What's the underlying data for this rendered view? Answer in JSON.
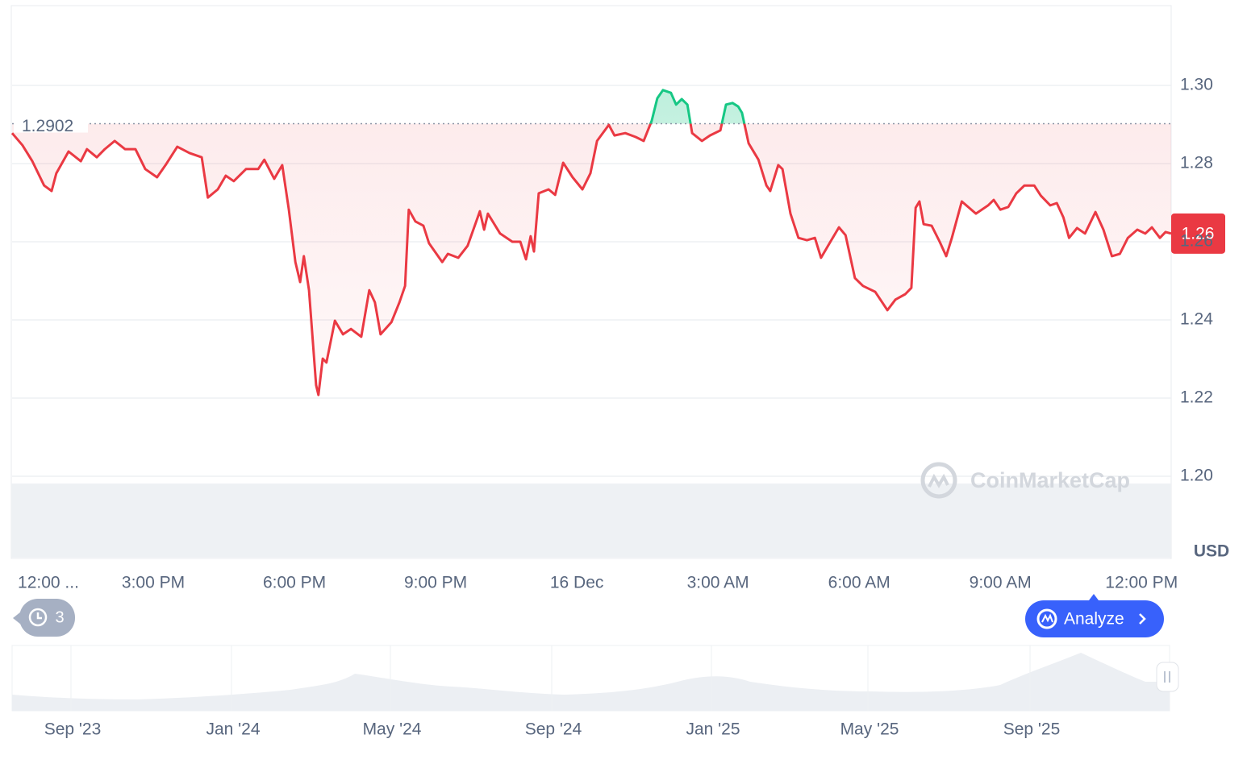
{
  "chart_data": {
    "type": "line",
    "baseline": 1.2902,
    "currency": "USD",
    "price_label": "1.26",
    "color_up": "#16c784",
    "color_down": "#ea3943",
    "x": [
      0,
      0.22,
      0.43,
      0.68,
      0.84,
      0.94,
      1.2,
      1.46,
      1.59,
      1.8,
      1.97,
      2.18,
      2.4,
      2.62,
      2.83,
      3.08,
      3.26,
      3.51,
      3.77,
      4.03,
      4.16,
      4.37,
      4.54,
      4.71,
      4.97,
      5.23,
      5.36,
      5.57,
      5.74,
      5.88,
      6.02,
      6.12,
      6.2,
      6.31,
      6.46,
      6.51,
      6.6,
      6.68,
      6.86,
      7.03,
      7.2,
      7.42,
      7.59,
      7.71,
      7.83,
      8.06,
      8.23,
      8.35,
      8.43,
      8.57,
      8.74,
      8.86,
      9.14,
      9.26,
      9.48,
      9.68,
      9.94,
      10.03,
      10.11,
      10.37,
      10.63,
      10.8,
      10.92,
      11.02,
      11.09,
      11.19,
      11.4,
      11.54,
      11.71,
      11.91,
      12.12,
      12.29,
      12.43,
      12.68,
      12.8,
      13.03,
      13.25,
      13.42,
      13.59,
      13.71,
      13.83,
      14.0,
      14.11,
      14.23,
      14.35,
      14.45,
      14.66,
      14.83,
      15.05,
      15.17,
      15.31,
      15.43,
      15.51,
      15.65,
      15.86,
      16.03,
      16.11,
      16.28,
      16.37,
      16.54,
      16.71,
      16.89,
      17.06,
      17.19,
      17.37,
      17.57,
      17.71,
      17.91,
      18.08,
      18.34,
      18.6,
      18.77,
      18.98,
      19.11,
      19.2,
      19.28,
      19.37,
      19.54,
      19.71,
      19.85,
      19.97,
      20.18,
      20.48,
      20.74,
      20.86,
      21.0,
      21.17,
      21.34,
      21.51,
      21.72,
      21.86,
      22.06,
      22.2,
      22.34,
      22.46,
      22.63,
      22.8,
      23.02,
      23.19,
      23.37,
      23.54,
      23.71,
      23.91,
      24.08,
      24.22,
      24.39,
      24.51,
      24.63
    ],
    "values": [
      1.2878,
      1.2847,
      1.2806,
      1.2744,
      1.273,
      1.2775,
      1.2831,
      1.2806,
      1.2837,
      1.2816,
      1.2837,
      1.2858,
      1.2837,
      1.2837,
      1.2786,
      1.2765,
      1.2796,
      1.2843,
      1.2827,
      1.2816,
      1.2713,
      1.2734,
      1.2769,
      1.2755,
      1.2786,
      1.2786,
      1.281,
      1.2761,
      1.2796,
      1.2682,
      1.2548,
      1.2497,
      1.2563,
      1.2476,
      1.2233,
      1.2208,
      1.2301,
      1.2291,
      1.2398,
      1.2363,
      1.2377,
      1.2357,
      1.2476,
      1.2445,
      1.2363,
      1.2394,
      1.2445,
      1.2487,
      1.2682,
      1.2652,
      1.2641,
      1.2596,
      1.2548,
      1.2569,
      1.2559,
      1.259,
      1.2678,
      1.2631,
      1.2672,
      1.2621,
      1.26,
      1.26,
      1.2555,
      1.2614,
      1.2575,
      1.2724,
      1.2734,
      1.272,
      1.2802,
      1.2765,
      1.2734,
      1.2775,
      1.2858,
      1.2899,
      1.2872,
      1.2878,
      1.2868,
      1.2858,
      1.2909,
      1.2967,
      1.2988,
      1.2981,
      1.2951,
      1.2965,
      1.2951,
      1.2878,
      1.2858,
      1.2872,
      1.2885,
      1.2951,
      1.2955,
      1.2946,
      1.293,
      1.2852,
      1.281,
      1.2744,
      1.273,
      1.2796,
      1.2786,
      1.2672,
      1.261,
      1.2604,
      1.261,
      1.2559,
      1.2596,
      1.2637,
      1.2617,
      1.2507,
      1.2487,
      1.2472,
      1.2425,
      1.2452,
      1.2466,
      1.2482,
      1.2687,
      1.2703,
      1.2645,
      1.2641,
      1.26,
      1.2563,
      1.261,
      1.2703,
      1.2672,
      1.2693,
      1.2707,
      1.2682,
      1.2689,
      1.2724,
      1.2744,
      1.2744,
      1.2718,
      1.2693,
      1.2699,
      1.2662,
      1.261,
      1.2635,
      1.2621,
      1.2676,
      1.2631,
      1.2563,
      1.2569,
      1.261,
      1.2631,
      1.2621,
      1.2637,
      1.261,
      1.2625,
      1.2621
    ],
    "xlim": [
      0,
      24.63
    ],
    "xticks": [
      {
        "value": 0,
        "label": "12:00 ..."
      },
      {
        "value": 3,
        "label": "3:00 PM"
      },
      {
        "value": 6,
        "label": "6:00 PM"
      },
      {
        "value": 9,
        "label": "9:00 PM"
      },
      {
        "value": 12,
        "label": "16 Dec"
      },
      {
        "value": 15,
        "label": "3:00 AM"
      },
      {
        "value": 18,
        "label": "6:00 AM"
      },
      {
        "value": 21,
        "label": "9:00 AM"
      },
      {
        "value": 24,
        "label": "12:00 PM"
      }
    ],
    "ylim": [
      1.18,
      1.32
    ],
    "yticks": [
      {
        "value": 1.2,
        "label": "1.20"
      },
      1.22,
      1.24,
      1.26,
      1.28,
      {
        "value": 1.3,
        "label": "1.30"
      }
    ],
    "grid": true,
    "navigator_labels": [
      "Sep '23",
      "Jan '24",
      "May '24",
      "Sep '24",
      "Jan '25",
      "May '25",
      "Sep '25"
    ]
  },
  "watermark": "CoinMarketCap",
  "history_count": 3,
  "analyze_button": "Analyze"
}
